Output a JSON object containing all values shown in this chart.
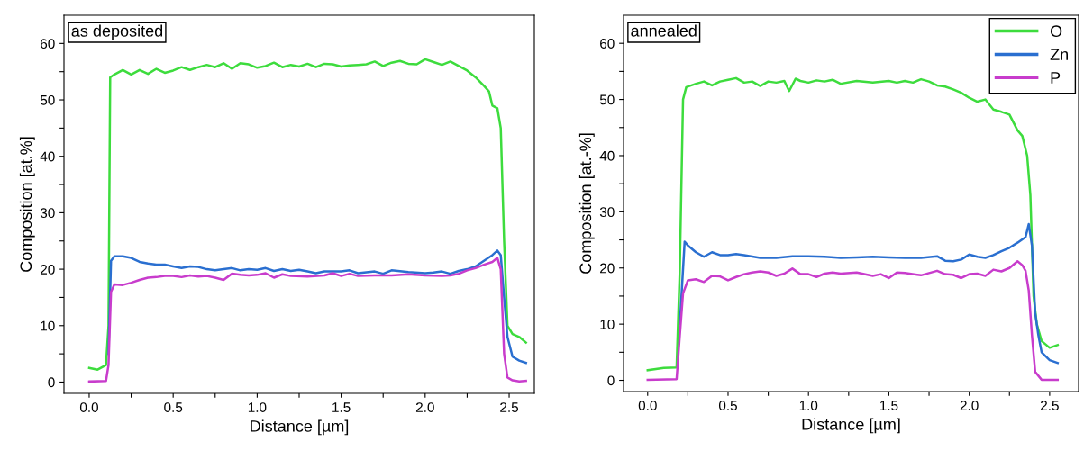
{
  "chart_data": [
    {
      "type": "line",
      "xlabel": "Distance [µm]",
      "ylabel": "Composition [at.%]",
      "annotations": [
        "as deposited"
      ],
      "xlim": [
        -0.15,
        2.65
      ],
      "ylim": [
        -2,
        65
      ],
      "xticks": [
        {
          "value": 0.0,
          "label": "0.0"
        },
        {
          "value": 0.25,
          "label": null
        },
        {
          "value": 0.5,
          "label": "0.5"
        },
        {
          "value": 0.75,
          "label": null
        },
        {
          "value": 1.0,
          "label": "1.0"
        },
        {
          "value": 1.25,
          "label": null
        },
        {
          "value": 1.5,
          "label": "1.5"
        },
        {
          "value": 1.75,
          "label": null
        },
        {
          "value": 2.0,
          "label": "2.0"
        },
        {
          "value": 2.25,
          "label": null
        },
        {
          "value": 2.5,
          "label": "2.5"
        }
      ],
      "yticks": [
        0,
        {
          "value": 5,
          "label": null
        },
        10,
        {
          "value": 15,
          "label": null
        },
        20,
        {
          "value": 25,
          "label": null
        },
        30,
        {
          "value": 35,
          "label": null
        },
        40,
        {
          "value": 45,
          "label": null
        },
        50,
        {
          "value": 55,
          "label": null
        },
        60
      ],
      "grid": false,
      "legend": false,
      "marker": "none",
      "line_style": "solid",
      "series": [
        {
          "color": "#3ddc3d",
          "x": [
            0,
            0.05,
            0.1,
            0.115,
            0.125,
            0.15,
            0.2,
            0.25,
            0.3,
            0.35,
            0.4,
            0.45,
            0.5,
            0.55,
            0.6,
            0.65,
            0.7,
            0.75,
            0.8,
            0.85,
            0.9,
            0.95,
            1.0,
            1.05,
            1.1,
            1.15,
            1.2,
            1.25,
            1.3,
            1.35,
            1.4,
            1.45,
            1.5,
            1.55,
            1.6,
            1.65,
            1.7,
            1.75,
            1.8,
            1.85,
            1.9,
            1.95,
            2.0,
            2.05,
            2.1,
            2.15,
            2.2,
            2.25,
            2.3,
            2.35,
            2.38,
            2.4,
            2.43,
            2.45,
            2.47,
            2.49,
            2.52,
            2.56,
            2.6
          ],
          "values": [
            2.5,
            2.2,
            3,
            10,
            54,
            54.5,
            55.3,
            54.5,
            55.3,
            54.6,
            55.5,
            54.8,
            55.2,
            55.8,
            55.3,
            55.8,
            56.2,
            55.8,
            56.5,
            55.5,
            56.5,
            56.3,
            55.7,
            56.0,
            56.6,
            55.8,
            56.2,
            55.9,
            56.4,
            55.8,
            56.4,
            56.3,
            55.9,
            56.1,
            56.2,
            56.3,
            56.8,
            56.0,
            56.6,
            56.9,
            56.4,
            56.3,
            57.2,
            56.7,
            56.2,
            56.8,
            56.0,
            55.2,
            54.0,
            52.5,
            51.5,
            49,
            48.5,
            45,
            25,
            10,
            8.5,
            8,
            7
          ]
        },
        {
          "color": "#2a6fd0",
          "x": [
            0.115,
            0.13,
            0.15,
            0.2,
            0.25,
            0.3,
            0.35,
            0.4,
            0.45,
            0.5,
            0.55,
            0.6,
            0.65,
            0.7,
            0.75,
            0.8,
            0.85,
            0.9,
            0.95,
            1.0,
            1.05,
            1.1,
            1.15,
            1.2,
            1.25,
            1.3,
            1.35,
            1.4,
            1.5,
            1.55,
            1.6,
            1.7,
            1.75,
            1.8,
            1.9,
            2.0,
            2.05,
            2.1,
            2.15,
            2.2,
            2.25,
            2.3,
            2.35,
            2.4,
            2.43,
            2.45,
            2.47,
            2.49,
            2.52,
            2.56,
            2.6
          ],
          "values": [
            5,
            21.5,
            22.3,
            22.3,
            22,
            21.3,
            21,
            20.8,
            20.8,
            20.5,
            20.2,
            20.5,
            20.4,
            20,
            19.8,
            20.0,
            20.2,
            19.8,
            20,
            19.9,
            20.2,
            19.7,
            20,
            19.7,
            19.9,
            19.6,
            19.3,
            19.6,
            19.6,
            19.8,
            19.3,
            19.6,
            19.2,
            19.8,
            19.5,
            19.3,
            19.4,
            19.6,
            19.2,
            19.7,
            20,
            20.5,
            21.5,
            22.5,
            23.3,
            22.5,
            15,
            8,
            4.5,
            3.8,
            3.4
          ]
        },
        {
          "color": "#c83ccc",
          "x": [
            0,
            0.1,
            0.115,
            0.13,
            0.15,
            0.2,
            0.25,
            0.3,
            0.35,
            0.4,
            0.45,
            0.5,
            0.55,
            0.6,
            0.65,
            0.7,
            0.75,
            0.8,
            0.85,
            0.9,
            0.95,
            1.0,
            1.05,
            1.1,
            1.15,
            1.2,
            1.3,
            1.4,
            1.45,
            1.5,
            1.55,
            1.6,
            1.7,
            1.8,
            1.9,
            2.0,
            2.1,
            2.15,
            2.2,
            2.25,
            2.3,
            2.35,
            2.4,
            2.43,
            2.45,
            2.47,
            2.49,
            2.52,
            2.56,
            2.6
          ],
          "values": [
            0.1,
            0.2,
            3,
            16,
            17.3,
            17.2,
            17.6,
            18.1,
            18.5,
            18.6,
            18.8,
            18.8,
            18.6,
            18.9,
            18.7,
            18.8,
            18.5,
            18.1,
            19.2,
            19.0,
            18.9,
            19.0,
            19.3,
            18.5,
            19.1,
            18.8,
            18.7,
            18.9,
            19.3,
            18.8,
            19.2,
            18.8,
            18.9,
            18.9,
            19.1,
            18.9,
            18.8,
            18.9,
            19.2,
            19.8,
            20.2,
            20.8,
            21.3,
            22,
            20,
            5,
            0.8,
            0.3,
            0.1,
            0.2
          ]
        }
      ]
    },
    {
      "type": "line",
      "xlabel": "Distance [µm]",
      "ylabel": "Composition [at.-%]",
      "annotations": [
        "annealed"
      ],
      "xlim": [
        -0.15,
        2.68
      ],
      "ylim": [
        -2,
        65
      ],
      "xticks": [
        {
          "value": 0.0,
          "label": "0.0"
        },
        {
          "value": 0.25,
          "label": null
        },
        {
          "value": 0.5,
          "label": "0.5"
        },
        {
          "value": 0.75,
          "label": null
        },
        {
          "value": 1.0,
          "label": "1.0"
        },
        {
          "value": 1.25,
          "label": null
        },
        {
          "value": 1.5,
          "label": "1.5"
        },
        {
          "value": 1.75,
          "label": null
        },
        {
          "value": 2.0,
          "label": "2.0"
        },
        {
          "value": 2.25,
          "label": null
        },
        {
          "value": 2.5,
          "label": "2.5"
        }
      ],
      "yticks": [
        0,
        {
          "value": 5,
          "label": null
        },
        10,
        {
          "value": 15,
          "label": null
        },
        20,
        {
          "value": 25,
          "label": null
        },
        30,
        {
          "value": 35,
          "label": null
        },
        40,
        {
          "value": 45,
          "label": null
        },
        50,
        {
          "value": 55,
          "label": null
        },
        60
      ],
      "grid": false,
      "legend": "top right",
      "marker": "none",
      "line_style": "solid",
      "series": [
        {
          "name": "O",
          "color": "#3ddc3d",
          "x": [
            0,
            0.1,
            0.18,
            0.2,
            0.22,
            0.24,
            0.3,
            0.35,
            0.4,
            0.45,
            0.5,
            0.55,
            0.6,
            0.65,
            0.7,
            0.75,
            0.8,
            0.85,
            0.88,
            0.92,
            0.95,
            1.0,
            1.05,
            1.1,
            1.15,
            1.2,
            1.3,
            1.4,
            1.5,
            1.55,
            1.6,
            1.65,
            1.7,
            1.75,
            1.8,
            1.85,
            1.9,
            1.95,
            2.0,
            2.05,
            2.1,
            2.15,
            2.2,
            2.25,
            2.3,
            2.33,
            2.36,
            2.38,
            2.4,
            2.42,
            2.45,
            2.5,
            2.55
          ],
          "values": [
            1.8,
            2.2,
            2.3,
            20,
            50,
            52.2,
            52.8,
            53.2,
            52.5,
            53.2,
            53.5,
            53.8,
            53.0,
            53.2,
            52.4,
            53.2,
            53.0,
            53.3,
            51.5,
            53.7,
            53.3,
            53.0,
            53.4,
            53.2,
            53.5,
            52.8,
            53.3,
            53.0,
            53.3,
            53.0,
            53.3,
            53.0,
            53.6,
            53.2,
            52.5,
            52.3,
            51.8,
            51.2,
            50.3,
            49.6,
            50.0,
            48.2,
            47.8,
            47.3,
            44.5,
            43.5,
            40,
            33,
            15,
            10,
            7,
            5.8,
            6.3
          ]
        },
        {
          "name": "Zn",
          "color": "#2a6fd0",
          "x": [
            0.2,
            0.23,
            0.25,
            0.3,
            0.35,
            0.4,
            0.45,
            0.5,
            0.55,
            0.6,
            0.7,
            0.8,
            0.9,
            1.0,
            1.1,
            1.2,
            1.3,
            1.4,
            1.5,
            1.6,
            1.7,
            1.8,
            1.85,
            1.9,
            1.95,
            2.0,
            2.05,
            2.1,
            2.15,
            2.2,
            2.25,
            2.3,
            2.35,
            2.37,
            2.39,
            2.41,
            2.43,
            2.45,
            2.5,
            2.55
          ],
          "values": [
            10,
            24.7,
            24,
            22.8,
            22,
            22.8,
            22.3,
            22.3,
            22.5,
            22.3,
            21.8,
            21.8,
            22.1,
            22.1,
            22.0,
            21.8,
            21.9,
            22.0,
            21.9,
            21.8,
            21.8,
            22.1,
            21.3,
            21.2,
            21.5,
            22.4,
            22.0,
            21.8,
            22.3,
            23.0,
            23.6,
            24.5,
            25.5,
            27.8,
            24,
            12,
            8,
            5,
            3.6,
            3.1
          ]
        },
        {
          "name": "P",
          "color": "#c83ccc",
          "x": [
            0,
            0.18,
            0.2,
            0.22,
            0.25,
            0.3,
            0.35,
            0.4,
            0.45,
            0.5,
            0.55,
            0.6,
            0.65,
            0.7,
            0.75,
            0.8,
            0.85,
            0.9,
            0.95,
            1.0,
            1.05,
            1.1,
            1.15,
            1.2,
            1.3,
            1.4,
            1.45,
            1.5,
            1.55,
            1.6,
            1.7,
            1.8,
            1.85,
            1.9,
            1.95,
            2.0,
            2.05,
            2.1,
            2.15,
            2.2,
            2.25,
            2.3,
            2.33,
            2.35,
            2.37,
            2.39,
            2.41,
            2.45,
            2.55
          ],
          "values": [
            0.1,
            0.2,
            8,
            15.5,
            17.8,
            18.0,
            17.5,
            18.6,
            18.5,
            17.8,
            18.4,
            18.9,
            19.2,
            19.4,
            19.2,
            18.6,
            19.0,
            19.9,
            18.9,
            18.9,
            18.4,
            19.0,
            19.2,
            19.0,
            19.2,
            18.6,
            18.9,
            18.2,
            19.2,
            19.1,
            18.7,
            19.5,
            18.9,
            18.8,
            18.2,
            18.9,
            19.0,
            18.6,
            19.7,
            19.4,
            20.0,
            21.2,
            20.5,
            19.5,
            16,
            8,
            1.5,
            0.1,
            0.1
          ]
        }
      ]
    }
  ]
}
